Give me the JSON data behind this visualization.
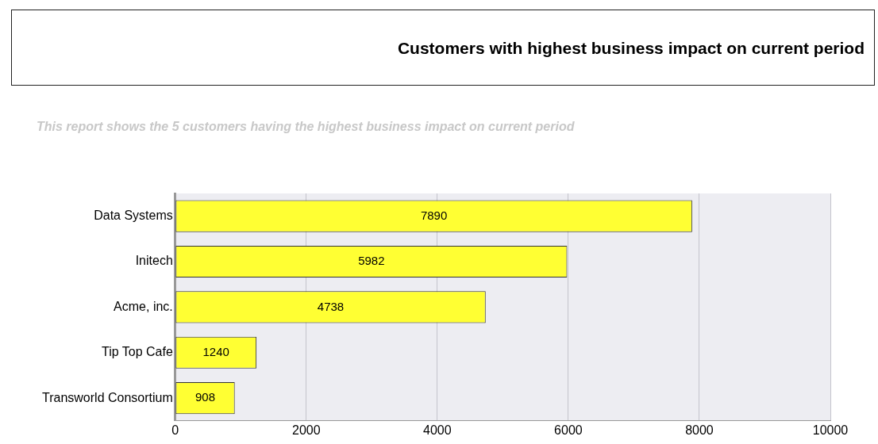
{
  "chart_data": {
    "type": "bar",
    "orientation": "horizontal",
    "title": "Customers with highest business impact on current period",
    "subtitle": "This report shows the 5 customers having the highest business impact on current period",
    "categories": [
      "Data Systems",
      "Initech",
      "Acme, inc.",
      "Tip Top Cafe",
      "Transworld Consortium"
    ],
    "values": [
      7890,
      5982,
      4738,
      1240,
      908
    ],
    "color": "#ffff33",
    "xlim": [
      0,
      10000
    ],
    "xticks": [
      0,
      2000,
      4000,
      6000,
      8000,
      10000
    ],
    "grid": "x",
    "data_labels": true
  }
}
